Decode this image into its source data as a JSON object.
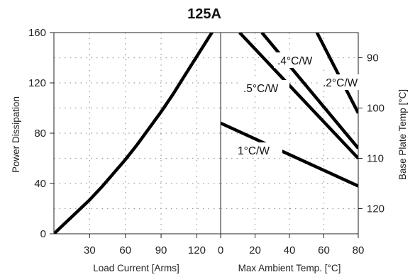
{
  "chart_data": [
    {
      "type": "line",
      "title": "125A",
      "xlabel": "Load Current  [Arms]",
      "ylabel": "Power Dissipation",
      "xlim": [
        0,
        140
      ],
      "ylim": [
        0,
        160
      ],
      "x_ticks": [
        "30",
        "60",
        "90",
        "120"
      ],
      "y_ticks": [
        "0",
        "40",
        "80",
        "120",
        "160"
      ],
      "grid": true,
      "series": [
        {
          "x": [
            0,
            10,
            20,
            30,
            40,
            50,
            60,
            70,
            80,
            90,
            100,
            110,
            120,
            130,
            136
          ],
          "y": [
            0,
            9,
            18,
            27,
            37,
            48,
            59,
            71,
            84,
            97,
            111,
            126,
            141,
            156,
            165
          ]
        }
      ]
    },
    {
      "type": "line",
      "xlabel": "Max Ambient Temp. [°C]",
      "ylabel": "Base Plate Temp [°C]",
      "xlim": [
        0,
        80
      ],
      "ylim": [
        125,
        85
      ],
      "x_ticks": [
        "0",
        "20",
        "40",
        "60",
        "80"
      ],
      "y_ticks": [
        "90",
        "100",
        "110",
        "120"
      ],
      "grid": true,
      "series": [
        {
          "name": ".2°C/W",
          "x": [
            56,
            80
          ],
          "y": [
            85,
            101
          ]
        },
        {
          "name": ".4°C/W",
          "x": [
            24,
            80
          ],
          "y": [
            85,
            108
          ]
        },
        {
          "name": ".5°C/W",
          "x": [
            11,
            80
          ],
          "y": [
            85,
            110
          ]
        },
        {
          "name": "1°C/W",
          "x": [
            0,
            80
          ],
          "y": [
            103,
            115.5
          ]
        }
      ]
    }
  ]
}
